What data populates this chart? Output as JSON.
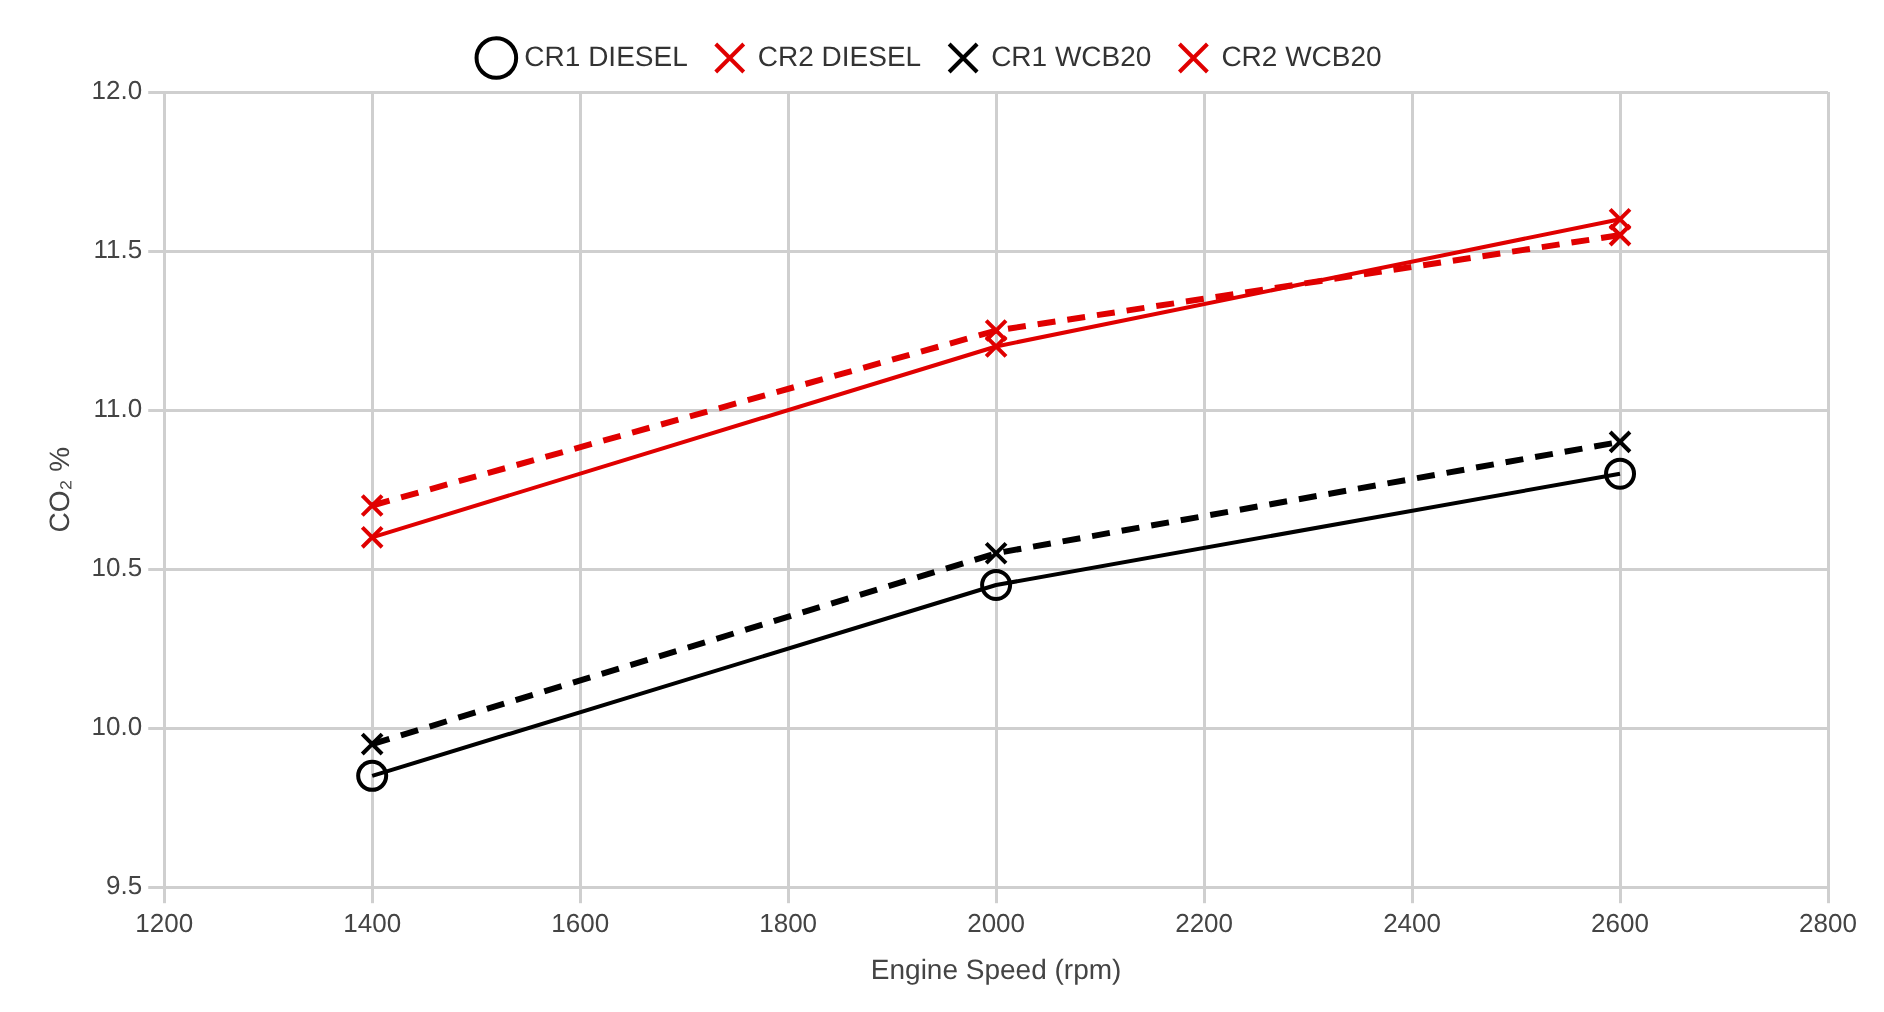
{
  "chart_data": {
    "type": "line",
    "xlabel": "Engine Speed (rpm)",
    "ylabel": "CO₂ %",
    "x": [
      1400,
      2000,
      2600
    ],
    "series": [
      {
        "name": "CR1 DIESEL",
        "color": "#000000",
        "values": [
          9.85,
          10.45,
          10.8
        ],
        "marker": "circle",
        "line_style": "solid"
      },
      {
        "name": "CR2 DIESEL",
        "color": "#e00000",
        "values": [
          10.6,
          11.2,
          11.6
        ],
        "marker": "cross",
        "line_style": "solid"
      },
      {
        "name": "CR1 WCB20",
        "color": "#000000",
        "values": [
          9.95,
          10.55,
          10.9
        ],
        "marker": "cross",
        "line_style": "dashed"
      },
      {
        "name": "CR2 WCB20",
        "color": "#e00000",
        "values": [
          10.7,
          11.25,
          11.55
        ],
        "marker": "cross",
        "line_style": "dashed"
      }
    ],
    "xlim": [
      1200,
      2800
    ],
    "xticks": [
      1200,
      1400,
      1600,
      1800,
      2000,
      2200,
      2400,
      2600,
      2800
    ],
    "ylim": [
      9.5,
      12
    ],
    "yticks": [
      {
        "value": 9.5,
        "label": "9.5"
      },
      {
        "value": 10,
        "label": "10.0"
      },
      {
        "value": 10.5,
        "label": "10.5"
      },
      {
        "value": 11,
        "label": "11.0"
      },
      {
        "value": 11.5,
        "label": "11.5"
      },
      {
        "value": 12,
        "label": "12.0"
      }
    ],
    "grid": true,
    "legend": "top"
  }
}
